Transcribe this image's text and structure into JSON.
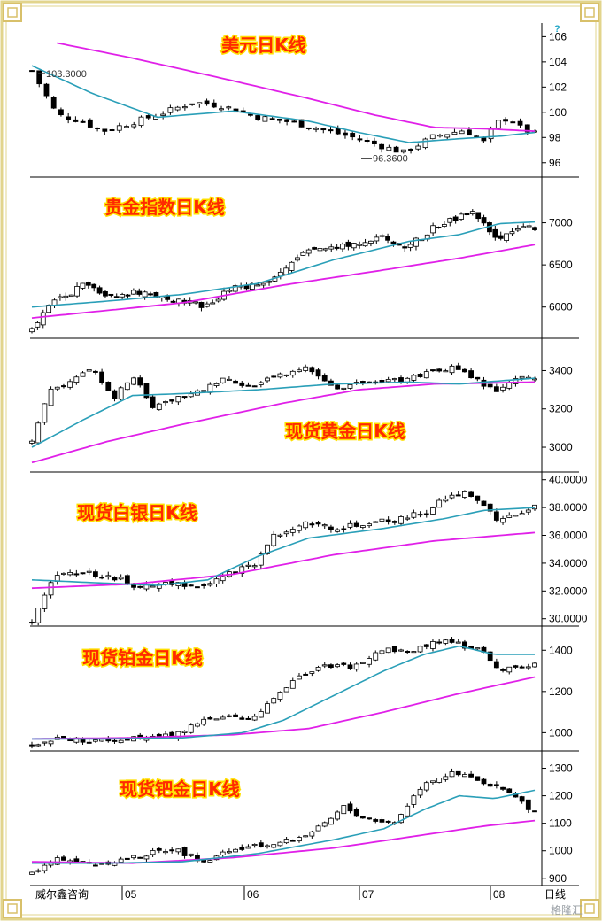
{
  "footer": {
    "brand": "威尔鑫咨询",
    "watermark": "格隆汇",
    "axis_unit": "日线"
  },
  "colors": {
    "ma_short": "#2a9fb8",
    "ma_long": "#e020e8",
    "candle": "#000000",
    "title_fill": "#ff2a00",
    "title_glow": "#ffe000",
    "frame": "#e2d48c"
  },
  "x_axis": {
    "labels": [
      "05",
      "06",
      "07",
      "08"
    ]
  },
  "chart_data": [
    {
      "type": "candlestick",
      "title": "美元日K线",
      "y_ticks": [
        96,
        98,
        100,
        102,
        104,
        106
      ],
      "ylim": [
        95,
        106.8
      ],
      "annotations": [
        {
          "text": "103.3000",
          "near": "left-high"
        },
        {
          "text": "96.3600",
          "near": "low"
        }
      ],
      "series": [
        {
          "kind": "ma_short",
          "x": [
            0,
            0.12,
            0.25,
            0.4,
            0.55,
            0.65,
            0.75,
            0.85,
            0.93,
            1.0
          ],
          "values": [
            103.7,
            101.5,
            99.6,
            100.1,
            99.3,
            98.4,
            97.6,
            97.9,
            98.1,
            98.4
          ]
        },
        {
          "kind": "ma_long",
          "x": [
            0.05,
            0.2,
            0.4,
            0.55,
            0.68,
            0.8,
            0.9,
            1.0
          ],
          "values": [
            105.5,
            104.3,
            102.5,
            101.1,
            99.8,
            98.8,
            98.7,
            98.5
          ]
        },
        {
          "kind": "price",
          "x": [
            0,
            0.05,
            0.1,
            0.14,
            0.2,
            0.25,
            0.32,
            0.38,
            0.45,
            0.52,
            0.58,
            0.64,
            0.68,
            0.74,
            0.8,
            0.86,
            0.9,
            0.92,
            0.95,
            0.97,
            1.0
          ],
          "values": [
            103.3,
            99.8,
            99.3,
            98.5,
            99.2,
            99.8,
            100.8,
            100.5,
            99.6,
            99.2,
            98.6,
            98.0,
            97.5,
            96.8,
            98.1,
            98.6,
            97.6,
            99.1,
            99.6,
            98.8,
            98.3
          ]
        }
      ]
    },
    {
      "type": "candlestick",
      "title": "贵金指数日K线",
      "y_ticks": [
        6000,
        6500,
        7000
      ],
      "ylim": [
        5650,
        7500
      ],
      "series": [
        {
          "kind": "ma_short",
          "x": [
            0,
            0.15,
            0.3,
            0.45,
            0.6,
            0.75,
            0.85,
            0.93,
            1.0
          ],
          "values": [
            6000,
            6070,
            6150,
            6280,
            6560,
            6780,
            6860,
            6990,
            7010
          ]
        },
        {
          "kind": "ma_long",
          "x": [
            0,
            0.3,
            0.5,
            0.7,
            0.85,
            1.0
          ],
          "values": [
            5870,
            6050,
            6260,
            6440,
            6580,
            6740
          ]
        },
        {
          "kind": "price",
          "x": [
            0,
            0.04,
            0.1,
            0.15,
            0.22,
            0.28,
            0.35,
            0.4,
            0.45,
            0.5,
            0.55,
            0.6,
            0.65,
            0.7,
            0.75,
            0.8,
            0.84,
            0.88,
            0.91,
            0.94,
            0.97,
            1.0
          ],
          "values": [
            5730,
            6050,
            6250,
            6150,
            6180,
            6080,
            6000,
            6240,
            6270,
            6430,
            6680,
            6730,
            6760,
            6820,
            6720,
            6940,
            7050,
            7150,
            6870,
            6820,
            6970,
            6930
          ]
        }
      ]
    },
    {
      "type": "candlestick",
      "title": "现货黄金日K线",
      "y_ticks": [
        3000,
        3200,
        3400
      ],
      "ylim": [
        2880,
        3550
      ],
      "series": [
        {
          "kind": "ma_short",
          "x": [
            0,
            0.1,
            0.2,
            0.3,
            0.45,
            0.6,
            0.75,
            0.85,
            1.0
          ],
          "values": [
            3000,
            3140,
            3270,
            3280,
            3300,
            3330,
            3340,
            3330,
            3360
          ]
        },
        {
          "kind": "ma_long",
          "x": [
            0,
            0.15,
            0.3,
            0.5,
            0.65,
            0.8,
            1.0
          ],
          "values": [
            2920,
            3030,
            3120,
            3230,
            3300,
            3330,
            3340
          ]
        },
        {
          "kind": "price",
          "x": [
            0,
            0.03,
            0.07,
            0.12,
            0.16,
            0.2,
            0.24,
            0.29,
            0.33,
            0.38,
            0.44,
            0.5,
            0.55,
            0.6,
            0.66,
            0.72,
            0.78,
            0.84,
            0.88,
            0.92,
            0.96,
            1.0
          ],
          "values": [
            3020,
            3280,
            3330,
            3420,
            3250,
            3380,
            3210,
            3260,
            3290,
            3350,
            3320,
            3380,
            3410,
            3300,
            3340,
            3350,
            3380,
            3420,
            3360,
            3290,
            3360,
            3370
          ]
        }
      ]
    },
    {
      "type": "candlestick",
      "title": "现货白银日K线",
      "y_ticks": [
        30,
        32,
        34,
        36,
        38,
        40
      ],
      "y_tick_labels": [
        "30.0000",
        "32.0000",
        "34.0000",
        "36.0000",
        "38.0000",
        "40.0000"
      ],
      "ylim": [
        29.6,
        40.3
      ],
      "series": [
        {
          "kind": "ma_short",
          "x": [
            0,
            0.12,
            0.25,
            0.35,
            0.45,
            0.55,
            0.7,
            0.82,
            0.9,
            1.0
          ],
          "values": [
            32.8,
            32.6,
            32.4,
            32.8,
            34.5,
            35.8,
            36.5,
            37.2,
            37.8,
            38.0
          ]
        },
        {
          "kind": "ma_long",
          "x": [
            0,
            0.2,
            0.4,
            0.6,
            0.8,
            1.0
          ],
          "values": [
            32.2,
            32.5,
            33.2,
            34.6,
            35.6,
            36.2
          ]
        },
        {
          "kind": "price",
          "x": [
            0,
            0.04,
            0.1,
            0.16,
            0.22,
            0.28,
            0.34,
            0.4,
            0.44,
            0.48,
            0.54,
            0.6,
            0.66,
            0.72,
            0.78,
            0.82,
            0.86,
            0.9,
            0.93,
            0.96,
            1.0
          ],
          "values": [
            29.9,
            32.9,
            33.4,
            33.0,
            32.2,
            32.6,
            32.2,
            33.4,
            33.8,
            36.0,
            36.9,
            36.5,
            36.8,
            37.1,
            37.6,
            38.7,
            39.2,
            38.2,
            37.0,
            37.6,
            38.0
          ]
        }
      ]
    },
    {
      "type": "candlestick",
      "title": "现货铂金日K线",
      "y_ticks": [
        1000,
        1200,
        1400
      ],
      "ylim": [
        920,
        1500
      ],
      "series": [
        {
          "kind": "ma_short",
          "x": [
            0,
            0.15,
            0.3,
            0.42,
            0.5,
            0.6,
            0.7,
            0.78,
            0.85,
            0.92,
            1.0
          ],
          "values": [
            970,
            970,
            975,
            1000,
            1060,
            1180,
            1300,
            1380,
            1420,
            1380,
            1380
          ]
        },
        {
          "kind": "ma_long",
          "x": [
            0,
            0.2,
            0.4,
            0.55,
            0.7,
            0.85,
            1.0
          ],
          "values": [
            970,
            975,
            990,
            1020,
            1100,
            1190,
            1270
          ]
        },
        {
          "kind": "price",
          "x": [
            0,
            0.06,
            0.12,
            0.2,
            0.28,
            0.34,
            0.38,
            0.42,
            0.46,
            0.5,
            0.54,
            0.58,
            0.64,
            0.7,
            0.76,
            0.82,
            0.86,
            0.9,
            0.93,
            0.96,
            1.0
          ],
          "values": [
            940,
            975,
            960,
            970,
            985,
            1060,
            1080,
            1060,
            1110,
            1220,
            1280,
            1320,
            1320,
            1400,
            1400,
            1460,
            1420,
            1390,
            1310,
            1310,
            1330
          ]
        }
      ]
    },
    {
      "type": "candlestick",
      "title": "现货钯金日K线",
      "y_ticks": [
        900,
        1000,
        1100,
        1200,
        1300
      ],
      "ylim": [
        880,
        1350
      ],
      "series": [
        {
          "kind": "ma_short",
          "x": [
            0,
            0.15,
            0.3,
            0.45,
            0.6,
            0.7,
            0.78,
            0.85,
            0.92,
            1.0
          ],
          "values": [
            955,
            955,
            960,
            990,
            1040,
            1080,
            1150,
            1200,
            1190,
            1220
          ]
        },
        {
          "kind": "ma_long",
          "x": [
            0,
            0.2,
            0.4,
            0.6,
            0.75,
            0.9,
            1.0
          ],
          "values": [
            960,
            955,
            975,
            1010,
            1050,
            1090,
            1110
          ]
        },
        {
          "kind": "price",
          "x": [
            0,
            0.06,
            0.12,
            0.2,
            0.28,
            0.34,
            0.4,
            0.46,
            0.52,
            0.58,
            0.62,
            0.66,
            0.72,
            0.78,
            0.83,
            0.87,
            0.91,
            0.95,
            0.98,
            1.0
          ],
          "values": [
            920,
            975,
            950,
            975,
            1010,
            960,
            1000,
            1020,
            1040,
            1090,
            1160,
            1120,
            1100,
            1250,
            1280,
            1270,
            1230,
            1220,
            1160,
            1140
          ]
        }
      ]
    }
  ]
}
